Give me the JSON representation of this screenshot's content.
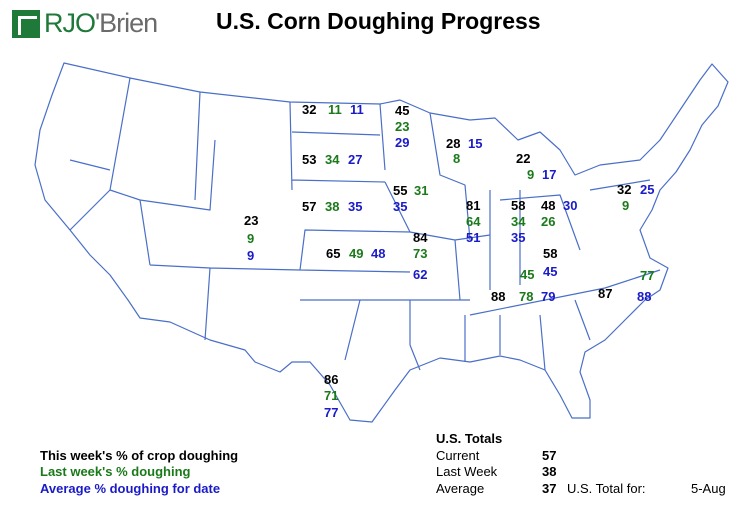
{
  "brand": {
    "name_a": "RJO",
    "name_b": "'Brien"
  },
  "title": "U.S. Corn Doughing Progress",
  "colors": {
    "current": "#000000",
    "last_week": "#1a7a1a",
    "average": "#1a1ac8",
    "borders": "#4a6fc8"
  },
  "states": {
    "nd": {
      "current": "32",
      "last": "11",
      "avg": "11"
    },
    "mn": {
      "current": "45",
      "last": "23",
      "avg": "29"
    },
    "sd": {
      "current": "53",
      "last": "34",
      "avg": "27"
    },
    "wi": {
      "current": "28",
      "last": "8",
      "avg": "15"
    },
    "mi": {
      "current": "22",
      "last": "9",
      "avg": "17"
    },
    "ia": {
      "current": "55",
      "last": "31",
      "avg": "35"
    },
    "ne": {
      "current": "57",
      "last": "38",
      "avg": "35"
    },
    "il": {
      "current": "81",
      "last": "64",
      "avg": "51"
    },
    "in": {
      "current": "58",
      "last": "34",
      "avg": "35"
    },
    "oh": {
      "current": "48",
      "last": "26",
      "avg": "30"
    },
    "pa": {
      "current": "32",
      "last": "9",
      "avg": "25"
    },
    "co": {
      "current": "23",
      "last": "9",
      "avg": "9"
    },
    "ks": {
      "current": "65",
      "last": "49",
      "avg": "48"
    },
    "mo": {
      "current": "84",
      "last": "73",
      "avg": "62"
    },
    "ky": {
      "current": "58",
      "last": "45",
      "avg": "45"
    },
    "tn": {
      "current": "88",
      "last": "78",
      "avg": "79"
    },
    "nc": {
      "current": "87",
      "last": "77",
      "avg": "88"
    },
    "tx": {
      "current": "86",
      "last": "71",
      "avg": "77"
    }
  },
  "legend": {
    "current": "This week's % of crop doughing",
    "last": "Last week's % doughing",
    "avg": "Average % doughing for date"
  },
  "totals": {
    "heading": "U.S. Totals",
    "current_label": "Current",
    "current": "57",
    "last_label": "Last Week",
    "last": "38",
    "avg_label": "Average",
    "avg": "37",
    "total_for_label": "U.S. Total for:",
    "date": "5-Aug"
  }
}
